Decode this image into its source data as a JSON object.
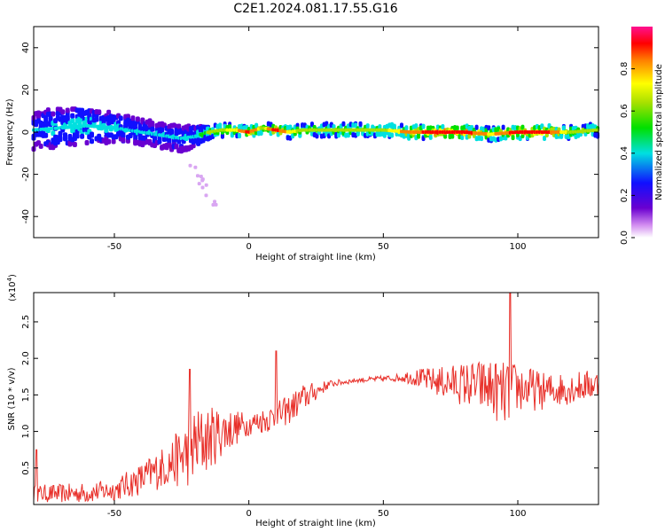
{
  "title": "C2E1.2024.081.17.55.G16",
  "colors": {
    "snr_line": "#e8302a",
    "axis": "#000000"
  },
  "chart_data": [
    {
      "type": "heatmap",
      "xlabel": "Height of straight line (km)",
      "ylabel": "Frequency (Hz)",
      "xlim": [
        -80,
        130
      ],
      "ylim": [
        -50,
        50
      ],
      "x_ticks": [
        -50,
        0,
        50,
        100
      ],
      "y_ticks": [
        40,
        20,
        0,
        -20,
        -40
      ],
      "colorbar": {
        "label": "Normalized spectral amplitude",
        "range": [
          0.0,
          1.0
        ],
        "ticks": [
          0.0,
          0.2,
          0.4,
          0.6,
          0.8
        ],
        "tick_labels": [
          "0.0",
          "0.2",
          "0.4",
          "0.6",
          "0.8"
        ]
      },
      "ridge": {
        "x": [
          -80,
          -70,
          -60,
          -50,
          -40,
          -30,
          -25,
          -20,
          -15,
          -10,
          -5,
          0,
          5,
          10,
          15,
          20,
          30,
          40,
          50,
          60,
          70,
          80,
          90,
          100,
          110,
          120,
          130
        ],
        "freq": [
          1,
          2,
          3,
          2,
          0,
          -2,
          -3,
          -2,
          0,
          1,
          1,
          0,
          2,
          1,
          0,
          1,
          1,
          1,
          1,
          0,
          0,
          0,
          -1,
          0,
          0,
          0,
          1
        ],
        "amplitude": [
          0.3,
          0.35,
          0.4,
          0.35,
          0.3,
          0.3,
          0.3,
          0.35,
          0.55,
          0.6,
          0.7,
          0.9,
          0.6,
          0.9,
          0.7,
          0.6,
          0.6,
          0.6,
          0.6,
          0.8,
          0.9,
          0.9,
          0.7,
          0.9,
          0.9,
          0.6,
          0.6
        ],
        "spread": [
          9,
          9,
          8,
          7,
          6,
          6,
          6,
          5,
          3,
          3,
          3,
          2,
          3,
          2,
          3,
          3,
          3,
          3,
          3,
          3,
          3,
          3,
          3,
          3,
          3,
          3,
          3
        ]
      }
    },
    {
      "type": "line",
      "xlabel": "Height of straight line (km)",
      "ylabel": "SNR (10 * v/v)",
      "y_multiplier": "(x10",
      "y_multiplier_exp": "4",
      "y_multiplier_close": ")",
      "xlim": [
        -80,
        130
      ],
      "ylim": [
        0,
        2.9
      ],
      "x_ticks": [
        -50,
        0,
        50,
        100
      ],
      "y_ticks": [
        0.5,
        1.0,
        1.5,
        2.0,
        2.5
      ],
      "y_tick_labels": [
        "0.5",
        "1.0",
        "1.5",
        "2.0",
        "2.5"
      ],
      "trend": {
        "x": [
          -80,
          -70,
          -60,
          -50,
          -40,
          -30,
          -25,
          -20,
          -15,
          -10,
          -5,
          0,
          5,
          10,
          15,
          20,
          25,
          30,
          40,
          50,
          60,
          70,
          80,
          90,
          95,
          100,
          110,
          120,
          130
        ],
        "y": [
          0.15,
          0.15,
          0.16,
          0.2,
          0.35,
          0.55,
          0.65,
          0.8,
          0.9,
          1.0,
          1.05,
          1.1,
          1.15,
          1.2,
          1.3,
          1.45,
          1.55,
          1.65,
          1.7,
          1.72,
          1.75,
          1.68,
          1.65,
          1.6,
          1.5,
          1.6,
          1.55,
          1.6,
          1.65
        ]
      },
      "noise_amplitude": {
        "x": [
          -80,
          -50,
          -30,
          -20,
          -10,
          0,
          10,
          20,
          30,
          40,
          55,
          65,
          75,
          85,
          95,
          100,
          110,
          130
        ],
        "y": [
          0.12,
          0.15,
          0.3,
          0.55,
          0.35,
          0.15,
          0.2,
          0.2,
          0.05,
          0.03,
          0.05,
          0.15,
          0.25,
          0.35,
          0.45,
          0.35,
          0.25,
          0.2
        ]
      },
      "peaks": [
        {
          "x": -79,
          "y": 0.75
        },
        {
          "x": -22,
          "y": 1.85
        },
        {
          "x": 10,
          "y": 2.1
        },
        {
          "x": 97,
          "y": 2.95
        }
      ]
    }
  ]
}
